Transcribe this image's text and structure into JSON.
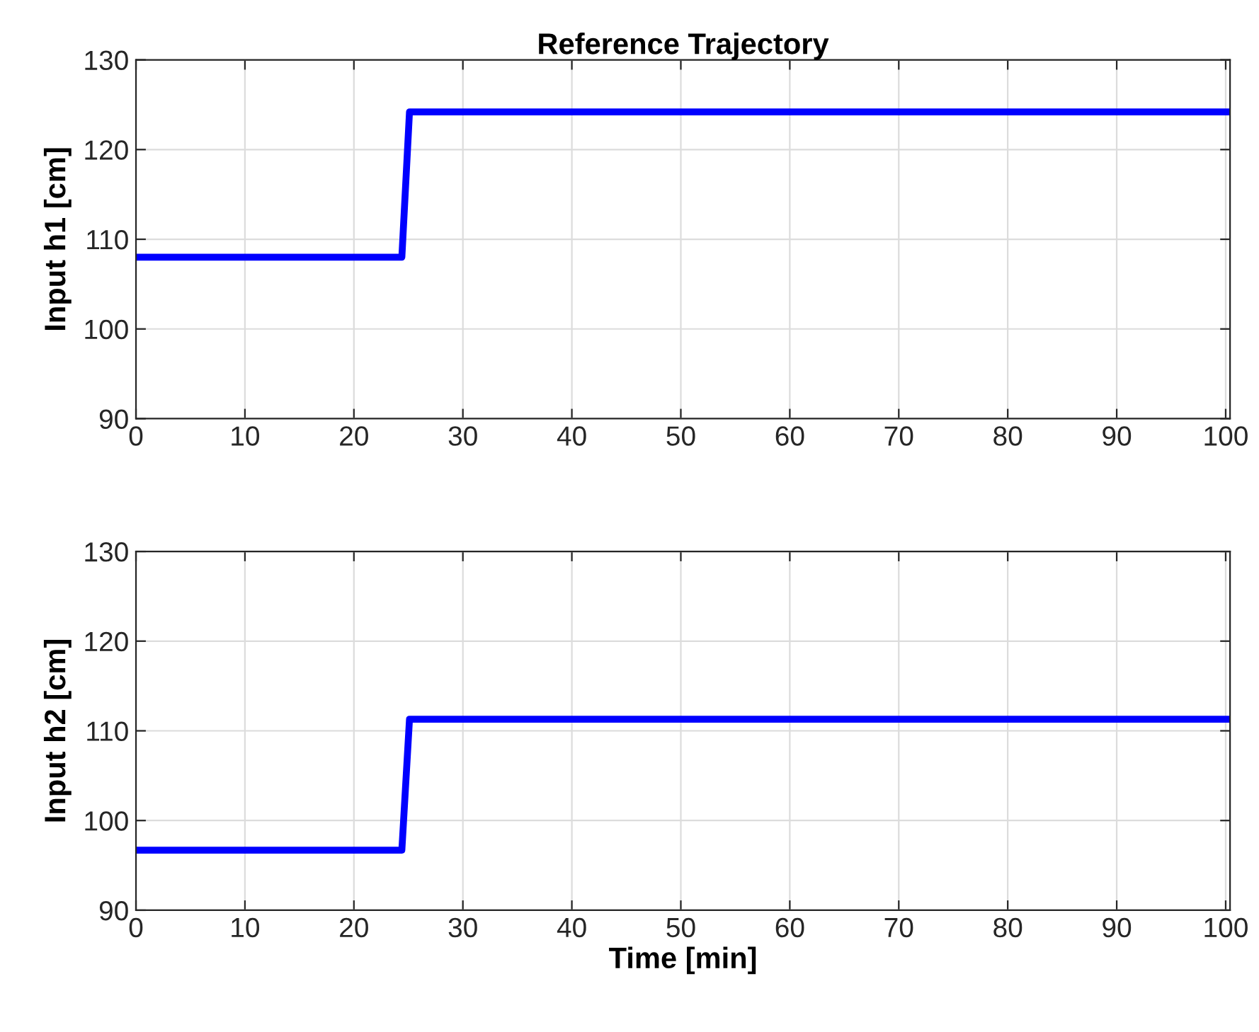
{
  "chart_data": [
    {
      "type": "line",
      "title": "Reference Trajectory",
      "ylabel": "Input h1 [cm]",
      "x": [
        0,
        24.4,
        25.1,
        100.4
      ],
      "series": [
        {
          "color": "#0000ff",
          "values": [
            108,
            108,
            124.2,
            124.2
          ]
        }
      ],
      "xlim": [
        0,
        100.4
      ],
      "ylim": [
        90,
        130
      ],
      "xticks": [
        0,
        10,
        20,
        30,
        40,
        50,
        60,
        70,
        80,
        90,
        100
      ],
      "yticks": [
        90,
        100,
        110,
        120,
        130
      ],
      "grid": true,
      "line_style": "solid",
      "marker": "none"
    },
    {
      "type": "line",
      "xlabel": "Time [min]",
      "ylabel": "Input h2 [cm]",
      "x": [
        0,
        24.4,
        25.1,
        100.4
      ],
      "series": [
        {
          "color": "#0000ff",
          "values": [
            96.7,
            96.7,
            111.3,
            111.3
          ]
        }
      ],
      "xlim": [
        0,
        100.4
      ],
      "ylim": [
        90,
        130
      ],
      "xticks": [
        0,
        10,
        20,
        30,
        40,
        50,
        60,
        70,
        80,
        90,
        100
      ],
      "yticks": [
        90,
        100,
        110,
        120,
        130
      ],
      "grid": true,
      "line_style": "solid",
      "marker": "none"
    }
  ]
}
